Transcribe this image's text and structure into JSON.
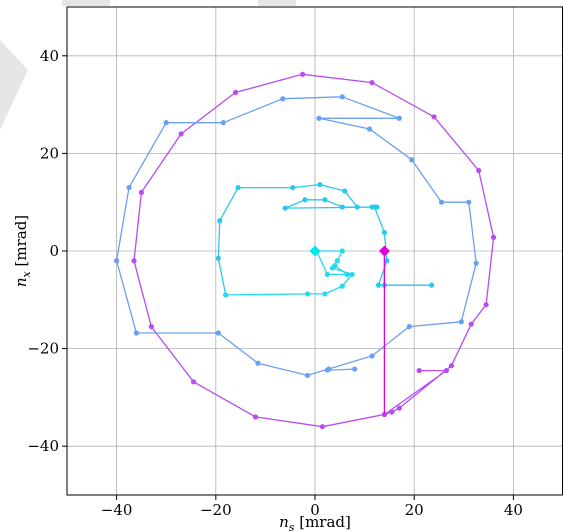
{
  "chart_data": {
    "type": "scatter",
    "title": "",
    "xlabel_main": "n",
    "xlabel_sub": "s",
    "xlabel_unit": " [mrad]",
    "ylabel_main": "n",
    "ylabel_sub": "x",
    "ylabel_unit": " [mrad]",
    "xlim": [
      -50,
      50
    ],
    "ylim": [
      -50,
      50
    ],
    "xticks": [
      -40,
      -20,
      0,
      20,
      40
    ],
    "yticks": [
      -40,
      -20,
      0,
      20,
      40
    ],
    "xtick_labels": [
      "−40",
      "−20",
      "0",
      "20",
      "40"
    ],
    "ytick_labels": [
      "−40",
      "−20",
      "0",
      "20",
      "40"
    ],
    "grid": true,
    "series": [
      {
        "color": "#b84cf0",
        "marker": "circle",
        "points": [
          [
            14,
            -33.5
          ],
          [
            15.5,
            -33
          ],
          [
            17,
            -32.2
          ],
          [
            27.5,
            -23.5
          ],
          [
            31.5,
            -15
          ],
          [
            34.5,
            -11
          ],
          [
            36,
            2.8
          ],
          [
            33,
            16.5
          ],
          [
            24,
            27.5
          ],
          [
            11.5,
            34.5
          ],
          [
            -2.5,
            36.2
          ],
          [
            -16,
            32.5
          ],
          [
            -27,
            24
          ],
          [
            -35,
            12
          ],
          [
            -36.5,
            -2
          ],
          [
            -33,
            -15.5
          ],
          [
            -24.5,
            -26.8
          ],
          [
            -12,
            -34
          ],
          [
            1.5,
            -36
          ],
          [
            14,
            -33.5
          ],
          [
            26.5,
            -24.5
          ],
          [
            21,
            -24.5
          ]
        ]
      },
      {
        "color": "#6aa0f0",
        "marker": "circle",
        "points": [
          [
            -40,
            -2
          ],
          [
            -37.5,
            13
          ],
          [
            -30,
            26.3
          ],
          [
            -18.5,
            26.3
          ],
          [
            -6.5,
            31.2
          ],
          [
            5.5,
            31.6
          ],
          [
            17,
            27.2
          ],
          [
            0.8,
            27.2
          ],
          [
            11,
            25
          ],
          [
            19.5,
            18.7
          ],
          [
            25.5,
            10
          ],
          [
            31,
            10
          ],
          [
            32.5,
            -2.5
          ],
          [
            29.5,
            -14.5
          ],
          [
            19,
            -15.5
          ],
          [
            11.5,
            -21.5
          ],
          [
            -1.5,
            -25.5
          ],
          [
            -11.5,
            -23
          ],
          [
            -19.5,
            -16.8
          ],
          [
            -36,
            -16.8
          ],
          [
            -40,
            -2
          ]
        ]
      },
      {
        "color": "#6aa0f0",
        "marker": "circle",
        "points": [
          [
            8,
            -24.2
          ],
          [
            2.5,
            -24.4
          ],
          [
            2.8,
            -24.2
          ]
        ]
      },
      {
        "color": "#28c8f0",
        "marker": "circle",
        "points": [
          [
            -18,
            -9
          ],
          [
            -19.5,
            -1.5
          ],
          [
            -19.2,
            6.2
          ],
          [
            -15.5,
            13
          ],
          [
            -4.5,
            13
          ],
          [
            1,
            13.6
          ],
          [
            6,
            12.3
          ],
          [
            8.5,
            9
          ],
          [
            11.5,
            9
          ],
          [
            12.5,
            9
          ],
          [
            -6,
            8.8
          ],
          [
            -2,
            10.5
          ],
          [
            2,
            10.5
          ],
          [
            5.5,
            9
          ],
          [
            12,
            9
          ],
          [
            14,
            3.8
          ],
          [
            14.5,
            -2
          ],
          [
            12.8,
            -7
          ],
          [
            23.5,
            -7
          ],
          [
            14,
            -7
          ],
          [
            14,
            0
          ]
        ]
      },
      {
        "color": "#28d8f0",
        "marker": "circle",
        "points": [
          [
            -18,
            -9
          ],
          [
            -1.5,
            -8.8
          ],
          [
            2,
            -8.8
          ],
          [
            5.5,
            -7.2
          ],
          [
            7.5,
            -4.8
          ],
          [
            3.5,
            -3.5
          ],
          [
            4.5,
            -2
          ],
          [
            5.5,
            0
          ],
          [
            0.3,
            0
          ],
          [
            2.5,
            -4.8
          ],
          [
            6.5,
            -4.8
          ],
          [
            4,
            -3
          ]
        ]
      },
      {
        "color": "#e000e0",
        "marker": "line",
        "points": [
          [
            14,
            0
          ],
          [
            14,
            -33.5
          ]
        ]
      }
    ],
    "markers": [
      {
        "name": "start-marker",
        "x": 0,
        "y": 0,
        "shape": "diamond",
        "color": "#00e6e6"
      },
      {
        "name": "end-marker",
        "x": 14,
        "y": 0,
        "shape": "diamond",
        "color": "#e000e0"
      }
    ]
  },
  "ui": {
    "overlay_color": "#e8e8e8"
  }
}
